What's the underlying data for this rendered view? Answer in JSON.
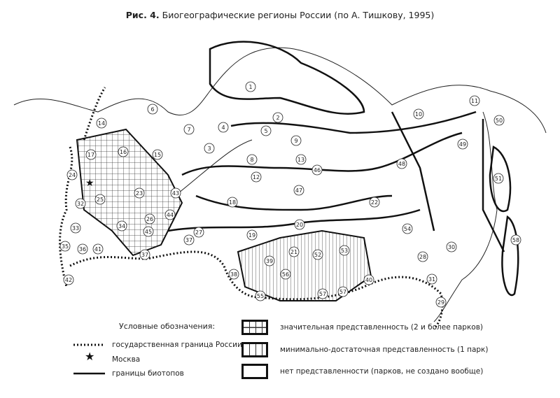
{
  "title": {
    "prefix": "Рис. 4.",
    "text": "Биогеографические регионы России (по А. Тишкову, 1995)"
  },
  "map": {
    "region_numbers": [
      "1",
      "2",
      "3",
      "4",
      "5",
      "6",
      "7",
      "8",
      "9",
      "10",
      "11",
      "12",
      "13",
      "14",
      "15",
      "16",
      "17",
      "18",
      "19",
      "20",
      "21",
      "22",
      "23",
      "24",
      "25",
      "26",
      "27",
      "28",
      "29",
      "30",
      "31",
      "32",
      "33",
      "34",
      "35",
      "36",
      "37",
      "37",
      "38",
      "39",
      "40",
      "41",
      "42",
      "43",
      "44",
      "45",
      "46",
      "47",
      "48",
      "49",
      "50",
      "51",
      "52",
      "53",
      "54",
      "55",
      "56",
      "57",
      "57",
      "58"
    ]
  },
  "legend": {
    "heading": "Условные обозначения:",
    "lines": [
      {
        "icon": "dotted-line",
        "label": "государственная граница России"
      },
      {
        "icon": "star",
        "label": "Москва"
      },
      {
        "icon": "solid-line",
        "label": "границы биотопов"
      }
    ],
    "fills": [
      {
        "pattern": "grid-hatch",
        "label": "значительная представленность (2 и более парков)"
      },
      {
        "pattern": "vertical-hatch",
        "label": "минимально-достаточная представленность (1 парк)"
      },
      {
        "pattern": "none",
        "label": "нет представленности (парков, не создано вообще)"
      }
    ]
  }
}
